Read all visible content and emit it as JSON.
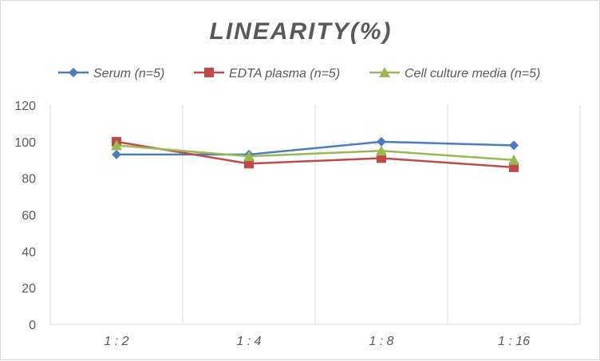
{
  "chart_data": {
    "type": "line",
    "title": "LINEARITY(%)",
    "xlabel": "",
    "ylabel": "",
    "categories": [
      "1:2",
      "1:4",
      "1:8",
      "1:16"
    ],
    "ylim": [
      0,
      120
    ],
    "yticks": [
      0,
      20,
      40,
      60,
      80,
      100,
      120
    ],
    "grid": "vertical",
    "legend_position": "top",
    "series": [
      {
        "name": "Serum (n=5)",
        "values": [
          93,
          93,
          100,
          98
        ],
        "color": "#4a7ebb",
        "marker": "diamond"
      },
      {
        "name": "EDTA plasma (n=5)",
        "values": [
          100,
          88,
          91,
          86
        ],
        "color": "#be4b48",
        "marker": "square"
      },
      {
        "name": "Cell culture media (n=5)",
        "values": [
          98,
          92,
          95,
          90
        ],
        "color": "#98b954",
        "marker": "triangle"
      }
    ]
  }
}
